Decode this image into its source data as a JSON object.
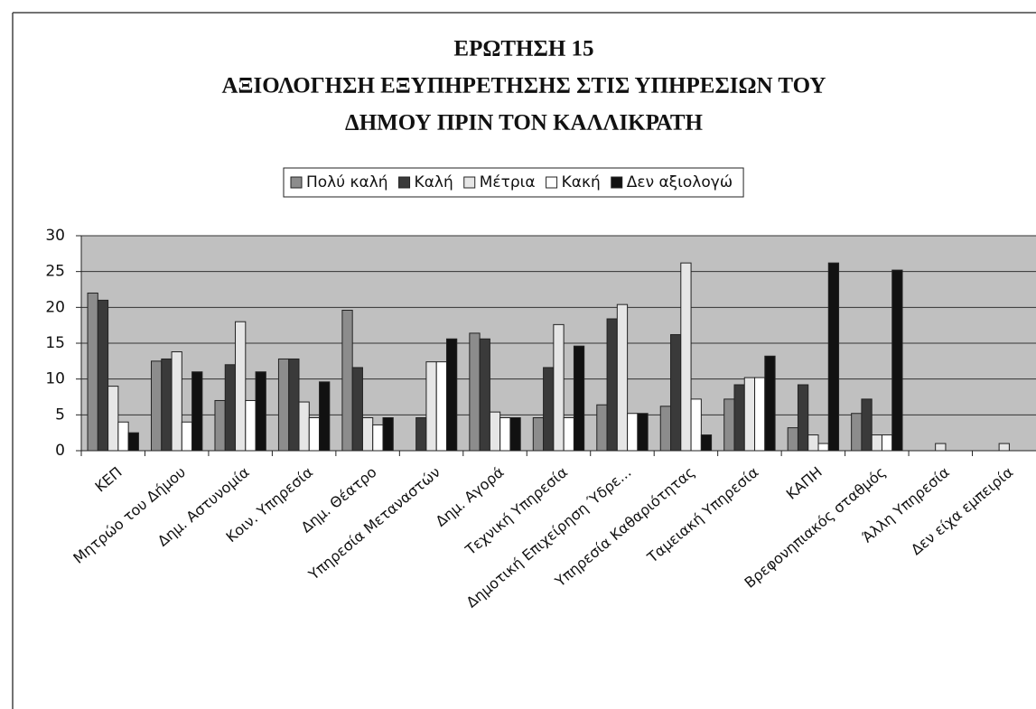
{
  "chart_data": {
    "type": "bar",
    "title": [
      "ΕΡΩΤΗΣΗ 15",
      "ΑΞΙΟΛΟΓΗΣΗ ΕΞΥΠΗΡΕΤΗΣΗΣ ΣΤΙΣ ΥΠΗΡΕΣΙΩΝ ΤΟΥ",
      "ΔΗΜΟΥ ΠΡΙΝ ΤΟΝ ΚΑΛΛΙΚΡΑΤΗ"
    ],
    "categories": [
      "ΚΕΠ",
      "Μητρώο του Δήμου",
      "Δημ. Αστυνομία",
      "Κοιν. Υπηρεσία",
      "Δημ. Θέατρο",
      "Υπηρεσία Μεταναστών",
      "Δημ. Αγορά",
      "Τεχνική Υπηρεσία",
      "Δημοτική Επιχείρηση Ύδρε...",
      "Υπηρεσία Καθαριότητας",
      "Ταμειακή Υπηρεσία",
      "ΚΑΠΗ",
      "Βρεφονηπιακός σταθμός",
      "Άλλη Υπηρεσία",
      "Δεν είχα εμπειρία"
    ],
    "series": [
      {
        "name": "Πολύ καλή",
        "color": "#8c8c8c",
        "values": [
          22,
          12.5,
          7,
          12.8,
          19.6,
          0,
          16.4,
          4.6,
          6.4,
          6.2,
          7.2,
          3.2,
          5.2,
          0,
          0
        ]
      },
      {
        "name": "Καλή",
        "color": "#3a3a3a",
        "values": [
          21,
          12.8,
          12,
          12.8,
          11.6,
          4.6,
          15.6,
          11.6,
          18.4,
          16.2,
          9.2,
          9.2,
          7.2,
          0,
          0
        ]
      },
      {
        "name": "Μέτρια",
        "color": "#e6e6e6",
        "values": [
          9,
          13.8,
          18,
          6.8,
          4.6,
          12.4,
          5.4,
          17.6,
          20.4,
          26.2,
          10.2,
          2.2,
          2.2,
          1,
          1
        ]
      },
      {
        "name": "Κακή",
        "color": "#ffffff",
        "values": [
          4,
          4,
          7,
          4.6,
          3.6,
          12.4,
          4.6,
          4.6,
          5.2,
          7.2,
          10.2,
          1,
          2.2,
          0,
          0
        ]
      },
      {
        "name": "Δεν αξιολογώ",
        "color": "#111111",
        "values": [
          2.5,
          11,
          11,
          9.6,
          4.6,
          15.6,
          4.6,
          14.6,
          5.2,
          2.2,
          13.2,
          26.2,
          25.2,
          0,
          0
        ]
      }
    ],
    "ylim": [
      0,
      30
    ],
    "yticks": [
      0,
      5,
      10,
      15,
      20,
      25,
      30
    ],
    "grid": true,
    "legend": "top"
  }
}
